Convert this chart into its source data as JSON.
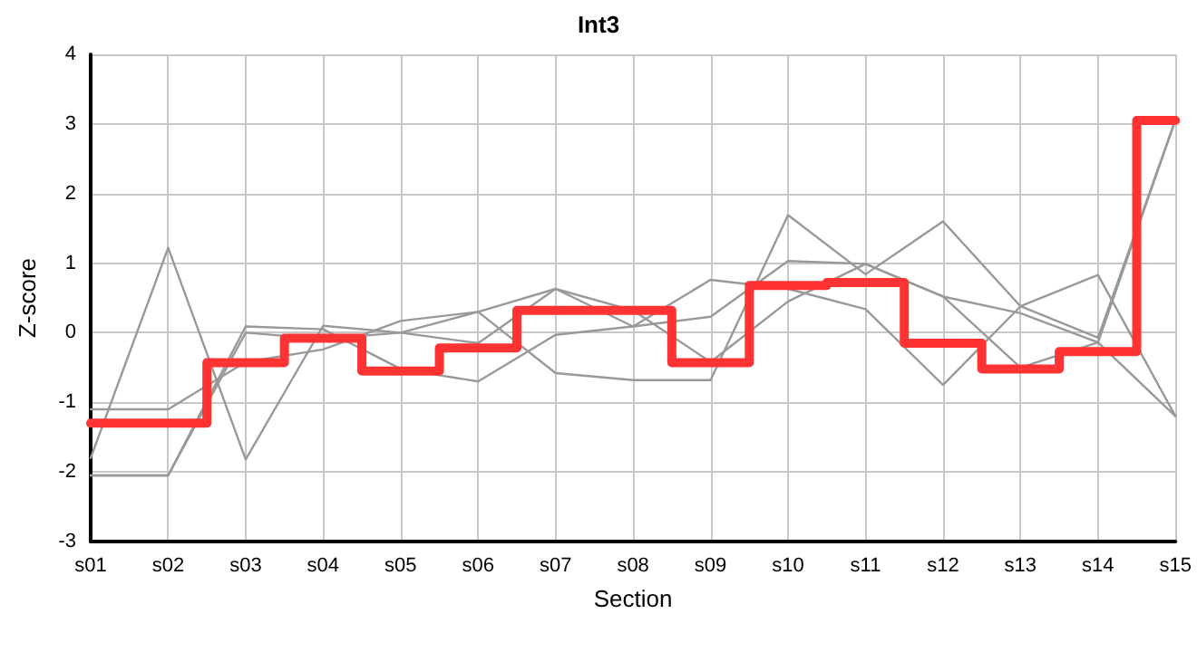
{
  "chart_data": {
    "type": "line",
    "title": "Int3",
    "xlabel": "Section",
    "ylabel": "Z-score",
    "categories": [
      "s01",
      "s02",
      "s03",
      "s04",
      "s05",
      "s06",
      "s07",
      "s08",
      "s09",
      "s10",
      "s11",
      "s12",
      "s13",
      "s14",
      "s15"
    ],
    "series": [
      {
        "color": "#999999",
        "values": [
          -1.8,
          1.22,
          -1.82,
          0.1,
          0.0,
          -0.15,
          0.63,
          0.09,
          0.23,
          1.03,
          0.99,
          0.52,
          0.28,
          -0.14,
          -1.2
        ]
      },
      {
        "color": "#999999",
        "values": [
          -1.1,
          -1.1,
          -0.42,
          -0.24,
          0.17,
          0.3,
          -0.58,
          -0.68,
          -0.68,
          1.69,
          0.84,
          1.6,
          0.38,
          -0.07,
          3.06
        ]
      },
      {
        "color": "#999999",
        "values": [
          -2.05,
          -2.05,
          0.09,
          0.05,
          -0.52,
          -0.7,
          -0.03,
          0.09,
          0.76,
          0.63,
          0.34,
          -0.75,
          0.38,
          0.83,
          -1.2
        ]
      },
      {
        "color": "#999999",
        "values": [
          -2.05,
          -2.05,
          0.0,
          -0.09,
          0.0,
          0.3,
          0.63,
          0.32,
          -0.42,
          0.45,
          0.99,
          0.52,
          -0.5,
          -0.14,
          3.06
        ]
      },
      {
        "type": "step",
        "color": "#ff3333",
        "values": [
          -1.3,
          -1.3,
          -0.43,
          -0.08,
          -0.55,
          -0.22,
          0.32,
          0.32,
          -0.43,
          0.68,
          0.72,
          -0.15,
          -0.52,
          -0.27,
          3.05
        ]
      }
    ],
    "ylim": [
      -3,
      4
    ],
    "yticks": [
      -3,
      -2,
      -1,
      0,
      1,
      2,
      3,
      4
    ],
    "grid": true,
    "marker": "none",
    "line_style": "solid"
  }
}
